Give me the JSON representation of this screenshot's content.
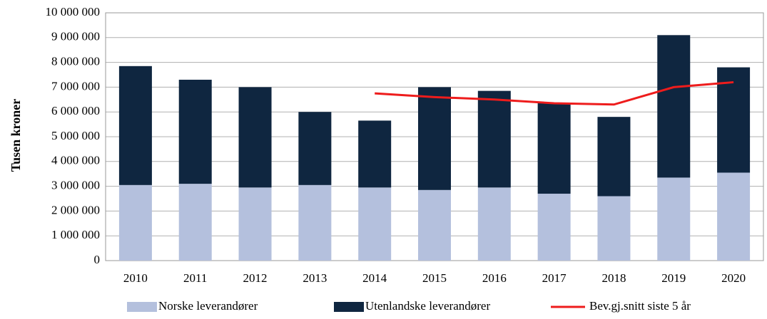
{
  "chart_data": {
    "type": "bar",
    "stacked": true,
    "y_label": "Tusen kroner",
    "categories": [
      "2010",
      "2011",
      "2012",
      "2013",
      "2014",
      "2015",
      "2016",
      "2017",
      "2018",
      "2019",
      "2020"
    ],
    "series": [
      {
        "name": "Norske leverandører",
        "color": "#b4c0dd",
        "type": "bar",
        "values": [
          3050000,
          3100000,
          2950000,
          3050000,
          2950000,
          2850000,
          2950000,
          2700000,
          2600000,
          3350000,
          3550000
        ]
      },
      {
        "name": "Utenlandske leverandører",
        "color": "#0f2640",
        "type": "bar",
        "values": [
          4800000,
          4200000,
          4050000,
          2950000,
          2700000,
          4150000,
          3900000,
          3650000,
          3200000,
          5750000,
          4250000
        ]
      },
      {
        "name": "Bev.gj.snitt siste 5 år",
        "color": "#ee1c1c",
        "type": "line",
        "values": [
          null,
          null,
          null,
          null,
          6750000,
          6600000,
          6500000,
          6350000,
          6300000,
          7000000,
          7200000
        ]
      }
    ],
    "ylim": [
      0,
      10000000
    ],
    "yticks": [
      0,
      {
        "value": 1000000,
        "label": "1 000 000"
      },
      {
        "value": 2000000,
        "label": "2 000 000"
      },
      {
        "value": 3000000,
        "label": "3 000 000"
      },
      {
        "value": 4000000,
        "label": "4 000 000"
      },
      {
        "value": 5000000,
        "label": "5 000 000"
      },
      {
        "value": 6000000,
        "label": "6 000 000"
      },
      {
        "value": 7000000,
        "label": "7 000 000"
      },
      {
        "value": 8000000,
        "label": "8 000 000"
      },
      {
        "value": 9000000,
        "label": "9 000 000"
      },
      {
        "value": 10000000,
        "label": "10 000 000"
      }
    ],
    "grid": true,
    "legend": "bottom"
  }
}
